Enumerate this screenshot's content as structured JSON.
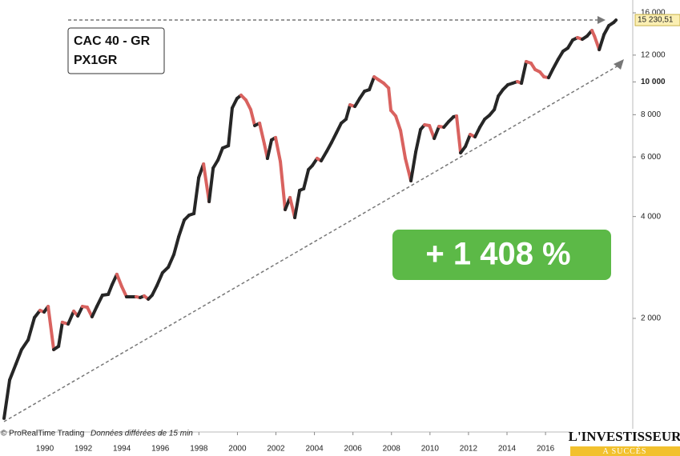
{
  "chart_data": {
    "type": "line",
    "info_title": "CAC 40 - GR",
    "info_code": "PX1GR",
    "performance": "+ 1 408 %",
    "credit": "© ProRealTime Trading",
    "delay_note": "Données différées de 15 min",
    "brand": "L'INVESTISSEUR",
    "brand_tagline": "A SUCCÈS",
    "last_price": {
      "value": 15230.51,
      "label": "15 230,51"
    },
    "log_scale": true,
    "up_color": "#262626",
    "down_color": "#d9625f",
    "xlim": [
      1987.67,
      2020.53
    ],
    "ylim": [
      923,
      17460
    ],
    "xticks": [
      1990,
      1992,
      1994,
      1996,
      1998,
      2000,
      2002,
      2004,
      2006,
      2008,
      2010,
      2012,
      2014,
      2016
    ],
    "yticks": [
      {
        "value": 2000,
        "label": "2 000"
      },
      {
        "value": 4000,
        "label": "4 000"
      },
      {
        "value": 6000,
        "label": "6 000"
      },
      {
        "value": 8000,
        "label": "8 000"
      },
      {
        "value": 10000,
        "label": "10 000",
        "bold": true
      },
      {
        "value": 12000,
        "label": "12 000"
      },
      {
        "value": 16000,
        "label": "16 000"
      }
    ],
    "x": [
      1987.88,
      1988.17,
      1988.5,
      1988.79,
      1989.13,
      1989.46,
      1989.75,
      1989.96,
      1990.17,
      1990.46,
      1990.71,
      1990.91,
      1991.21,
      1991.5,
      1991.71,
      1991.95,
      1992.2,
      1992.45,
      1992.7,
      1992.99,
      1993.29,
      1993.49,
      1993.74,
      1993.99,
      1994.24,
      1994.74,
      1994.95,
      1995.16,
      1995.37,
      1995.57,
      1995.82,
      1996.11,
      1996.41,
      1996.7,
      1996.95,
      1997.24,
      1997.49,
      1997.74,
      1997.99,
      1998.24,
      1998.53,
      1998.74,
      1998.99,
      1999.23,
      1999.53,
      1999.73,
      1999.98,
      2000.19,
      2000.44,
      2000.69,
      2000.9,
      2001.15,
      2001.4,
      2001.56,
      2001.77,
      2001.98,
      2002.23,
      2002.48,
      2002.73,
      2002.98,
      2003.23,
      2003.44,
      2003.69,
      2003.89,
      2004.14,
      2004.35,
      2004.64,
      2004.89,
      2005.14,
      2005.39,
      2005.64,
      2005.85,
      2006.1,
      2006.35,
      2006.6,
      2006.85,
      2007.1,
      2007.35,
      2007.6,
      2007.85,
      2007.97,
      2008.22,
      2008.47,
      2008.72,
      2009.01,
      2009.26,
      2009.51,
      2009.72,
      2009.97,
      2010.22,
      2010.47,
      2010.72,
      2010.97,
      2011.22,
      2011.38,
      2011.59,
      2011.84,
      2012.09,
      2012.34,
      2012.59,
      2012.84,
      2013.09,
      2013.34,
      2013.55,
      2013.79,
      2014.04,
      2014.29,
      2014.54,
      2014.75,
      2015.0,
      2015.25,
      2015.46,
      2015.71,
      2015.92,
      2016.16,
      2016.37,
      2016.66,
      2016.91,
      2017.16,
      2017.41,
      2017.66,
      2017.91,
      2018.16,
      2018.41,
      2018.54,
      2018.79,
      2019.04,
      2019.29,
      2019.54,
      2019.66
    ],
    "values": [
      1013,
      1315,
      1467,
      1617,
      1727,
      2011,
      2112,
      2088,
      2169,
      1617,
      1653,
      1947,
      1925,
      2100,
      2033,
      2169,
      2158,
      2022,
      2169,
      2342,
      2355,
      2515,
      2699,
      2486,
      2317,
      2317,
      2304,
      2330,
      2279,
      2342,
      2500,
      2728,
      2834,
      3091,
      3486,
      3907,
      4037,
      4081,
      5213,
      5718,
      4427,
      5565,
      5877,
      6373,
      6478,
      8373,
      8936,
      9133,
      8838,
      8282,
      7427,
      7549,
      6549,
      5941,
      6733,
      6846,
      5814,
      4192,
      4550,
      3971,
      4779,
      4832,
      5504,
      5658,
      5941,
      5845,
      6238,
      6624,
      7070,
      7549,
      7758,
      8553,
      8461,
      8936,
      9384,
      9486,
      10349,
      10126,
      9910,
      9592,
      8237,
      7928,
      7189,
      5941,
      5101,
      6205,
      7229,
      7467,
      7427,
      6806,
      7386,
      7346,
      7632,
      7883,
      7928,
      6171,
      6445,
      6994,
      6880,
      7346,
      7758,
      7968,
      8282,
      9083,
      9486,
      9802,
      9910,
      10018,
      9910,
      11482,
      11355,
      10874,
      10698,
      10349,
      10293,
      10874,
      11670,
      12320,
      12592,
      13296,
      13515,
      13368,
      13662,
      14192,
      13662,
      12455,
      13816,
      14667,
      14987,
      15230.51
    ]
  }
}
